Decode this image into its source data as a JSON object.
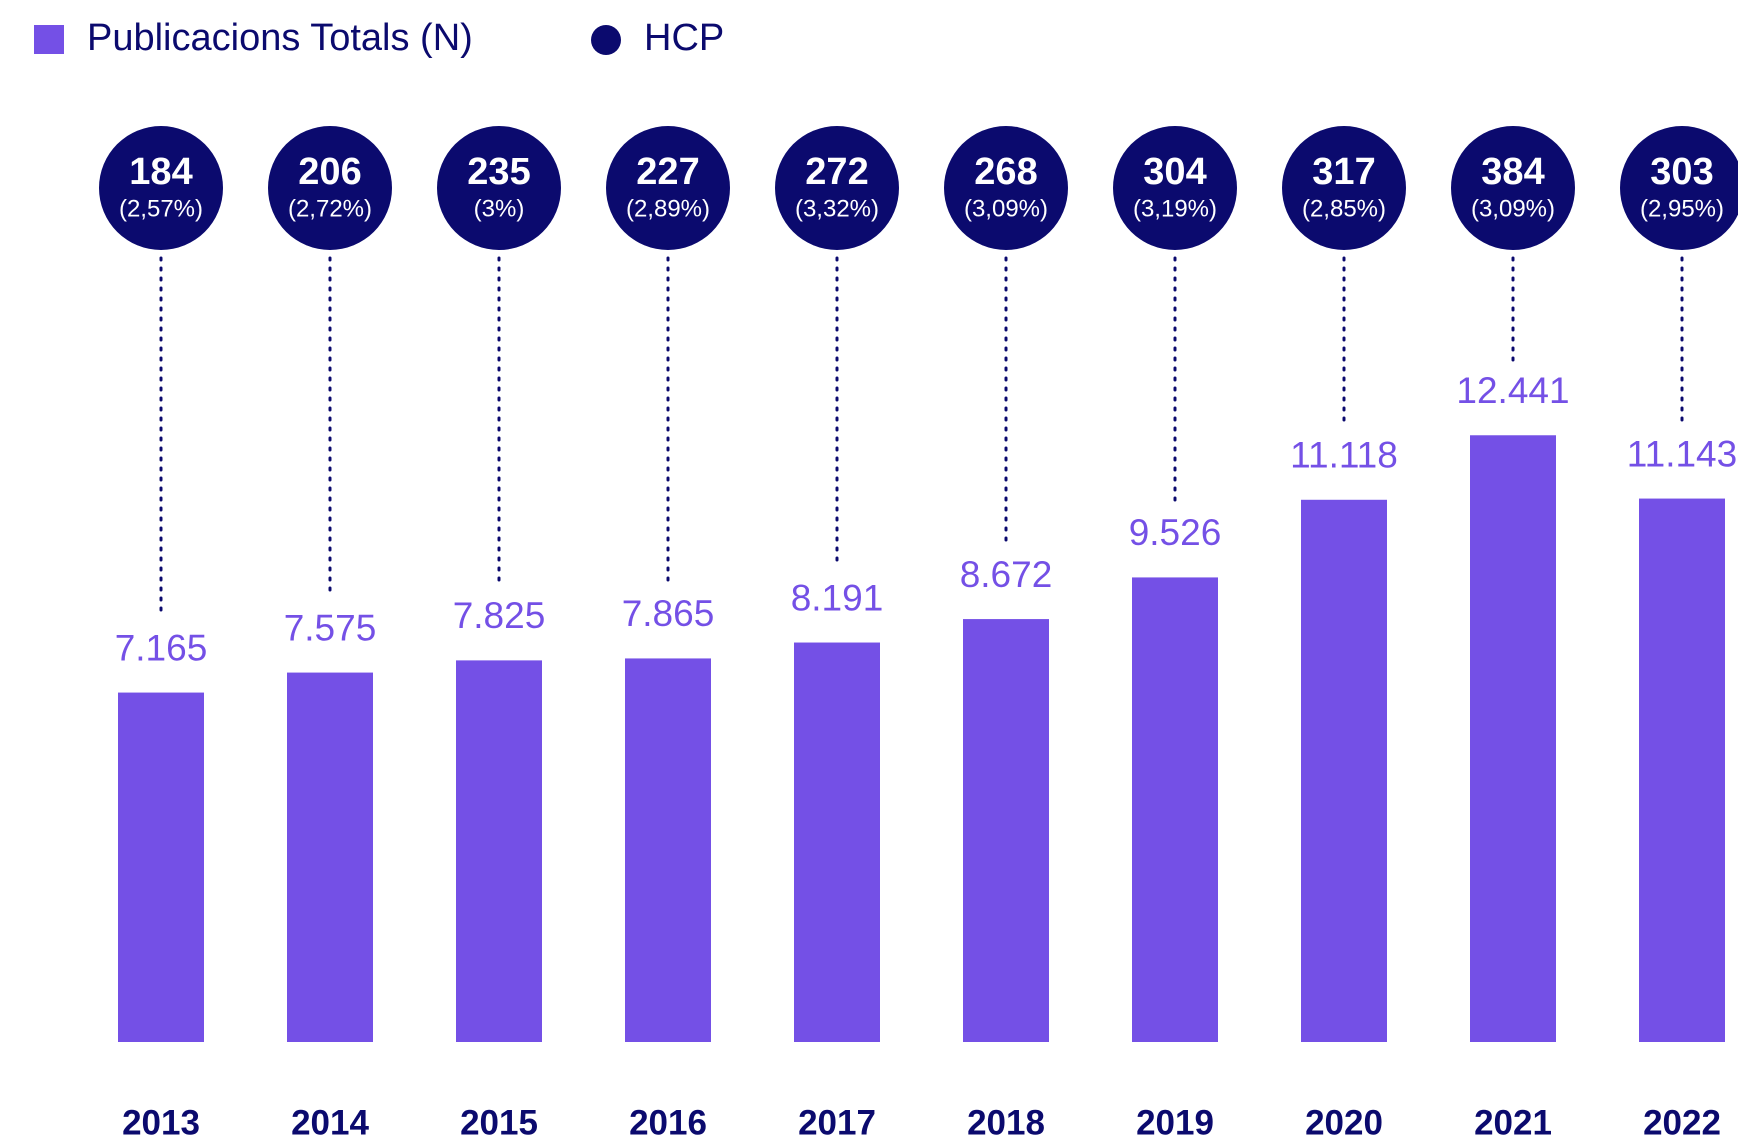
{
  "chart_data": {
    "type": "bar",
    "categories": [
      "2013",
      "2014",
      "2015",
      "2016",
      "2017",
      "2018",
      "2019",
      "2020",
      "2021",
      "2022"
    ],
    "ylim": [
      0,
      13000
    ],
    "series": [
      {
        "name": "Publicacions Totals (N)",
        "color": "#7450e6",
        "values": [
          7165,
          7575,
          7825,
          7865,
          8191,
          8672,
          9526,
          11118,
          12441,
          11143
        ],
        "value_labels": [
          "7.165",
          "7.575",
          "7.825",
          "7.865",
          "8.191",
          "8.672",
          "9.526",
          "11.118",
          "12.441",
          "11.143"
        ]
      },
      {
        "name": "HCP",
        "color": "#0b0a6e",
        "values": [
          184,
          206,
          235,
          227,
          272,
          268,
          304,
          317,
          384,
          303
        ],
        "share": [
          2.57,
          2.72,
          3,
          2.89,
          3.32,
          3.09,
          3.19,
          2.85,
          3.09,
          2.95
        ],
        "share_labels": [
          "(2,57%)",
          "(2,72%)",
          "(3%)",
          "(2,89%)",
          "(3,32%)",
          "(3,09%)",
          "(3,19%)",
          "(2,85%)",
          "(3,09%)",
          "(2,95%)"
        ]
      }
    ]
  }
}
